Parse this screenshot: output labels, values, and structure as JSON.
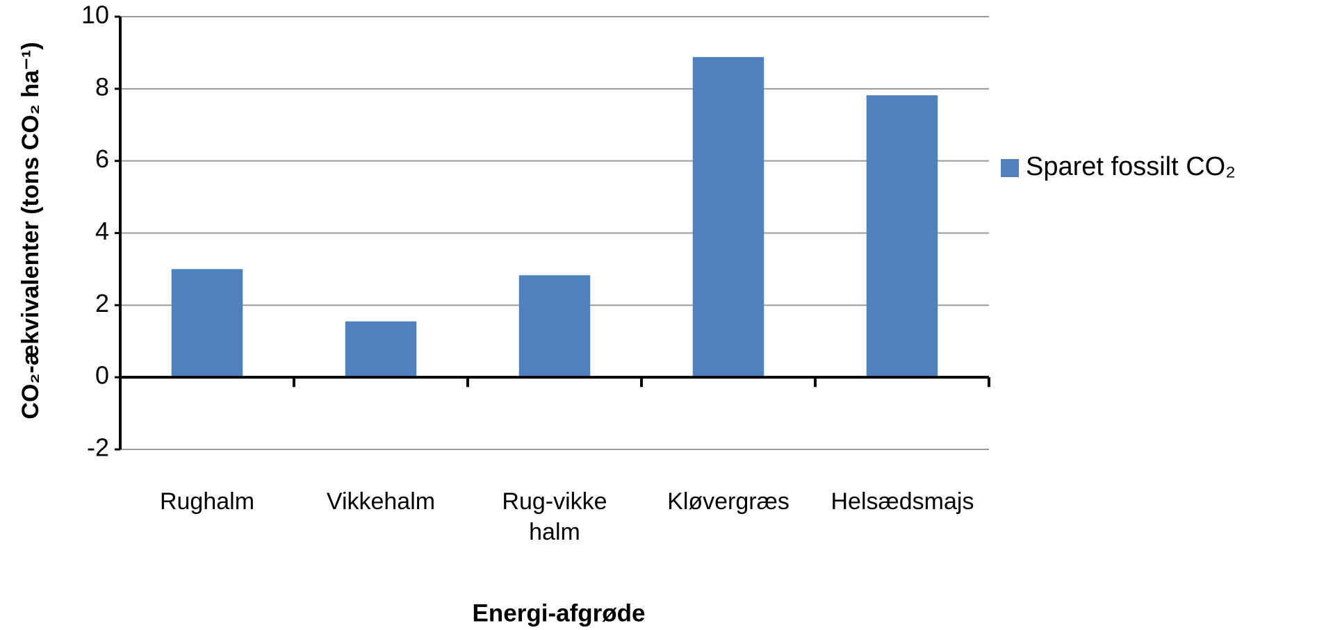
{
  "chart_data": {
    "type": "bar",
    "categories": [
      "Rughalm",
      "Vikkehalm",
      "Rug-vikke halm",
      "Kløvergræs",
      "Helsædsmajs"
    ],
    "series": [
      {
        "name": "Sparet fossilt CO₂",
        "color": "#4f81bd",
        "values": [
          3.0,
          1.55,
          2.83,
          8.88,
          7.82
        ]
      }
    ],
    "ylim": [
      -2,
      10
    ],
    "yticks": [
      -2,
      0,
      2,
      4,
      6,
      8,
      10
    ],
    "grid": true,
    "xlabel": "Energi-afgrøde",
    "ylabel": "CO₂-ækvivalenter (tons CO₂ ha⁻¹)",
    "legend": "right"
  }
}
